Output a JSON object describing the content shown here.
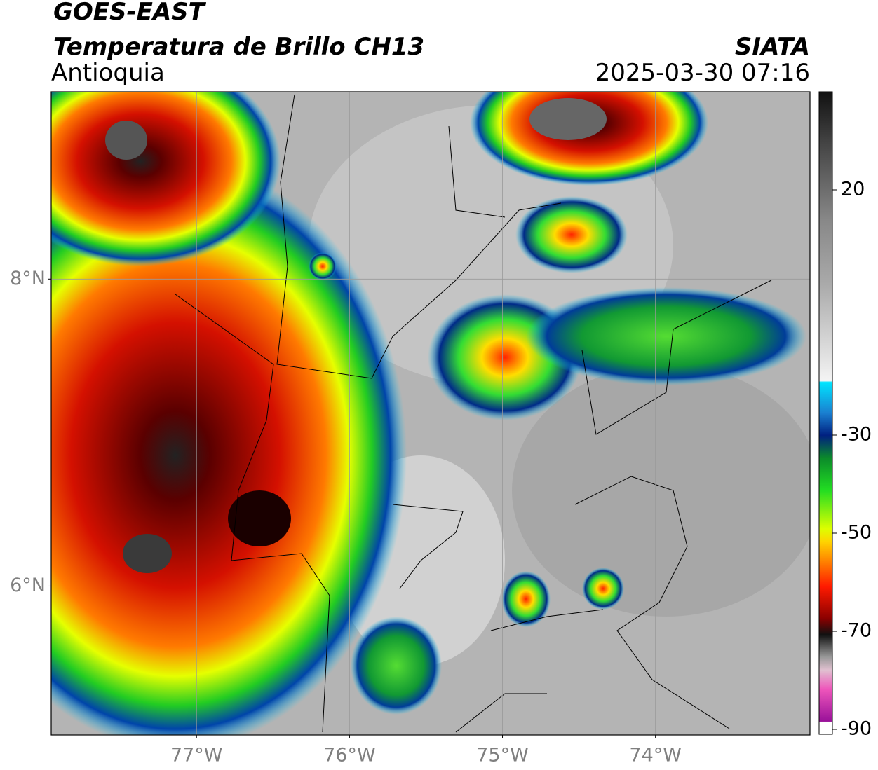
{
  "header": {
    "title": "GOES-EAST",
    "subtitle": "Temperatura de Brillo CH13",
    "region": "Antioquia",
    "source": "SIATA",
    "datetime": "2025-03-30 07:16"
  },
  "map": {
    "lonlim": [
      -77.95,
      -72.99
    ],
    "latlim": [
      5.03,
      9.22
    ],
    "lat_ticks": [
      {
        "value": 8,
        "label": "8°N"
      },
      {
        "value": 6,
        "label": "6°N"
      }
    ],
    "lon_ticks": [
      {
        "value": -77,
        "label": "77°W"
      },
      {
        "value": -76,
        "label": "76°W"
      },
      {
        "value": -75,
        "label": "75°W"
      },
      {
        "value": -74,
        "label": "74°W"
      }
    ],
    "grid": true
  },
  "colorbar": {
    "lim": [
      -91,
      40
    ],
    "ticks": [
      20,
      -30,
      -50,
      -70,
      -90
    ]
  }
}
